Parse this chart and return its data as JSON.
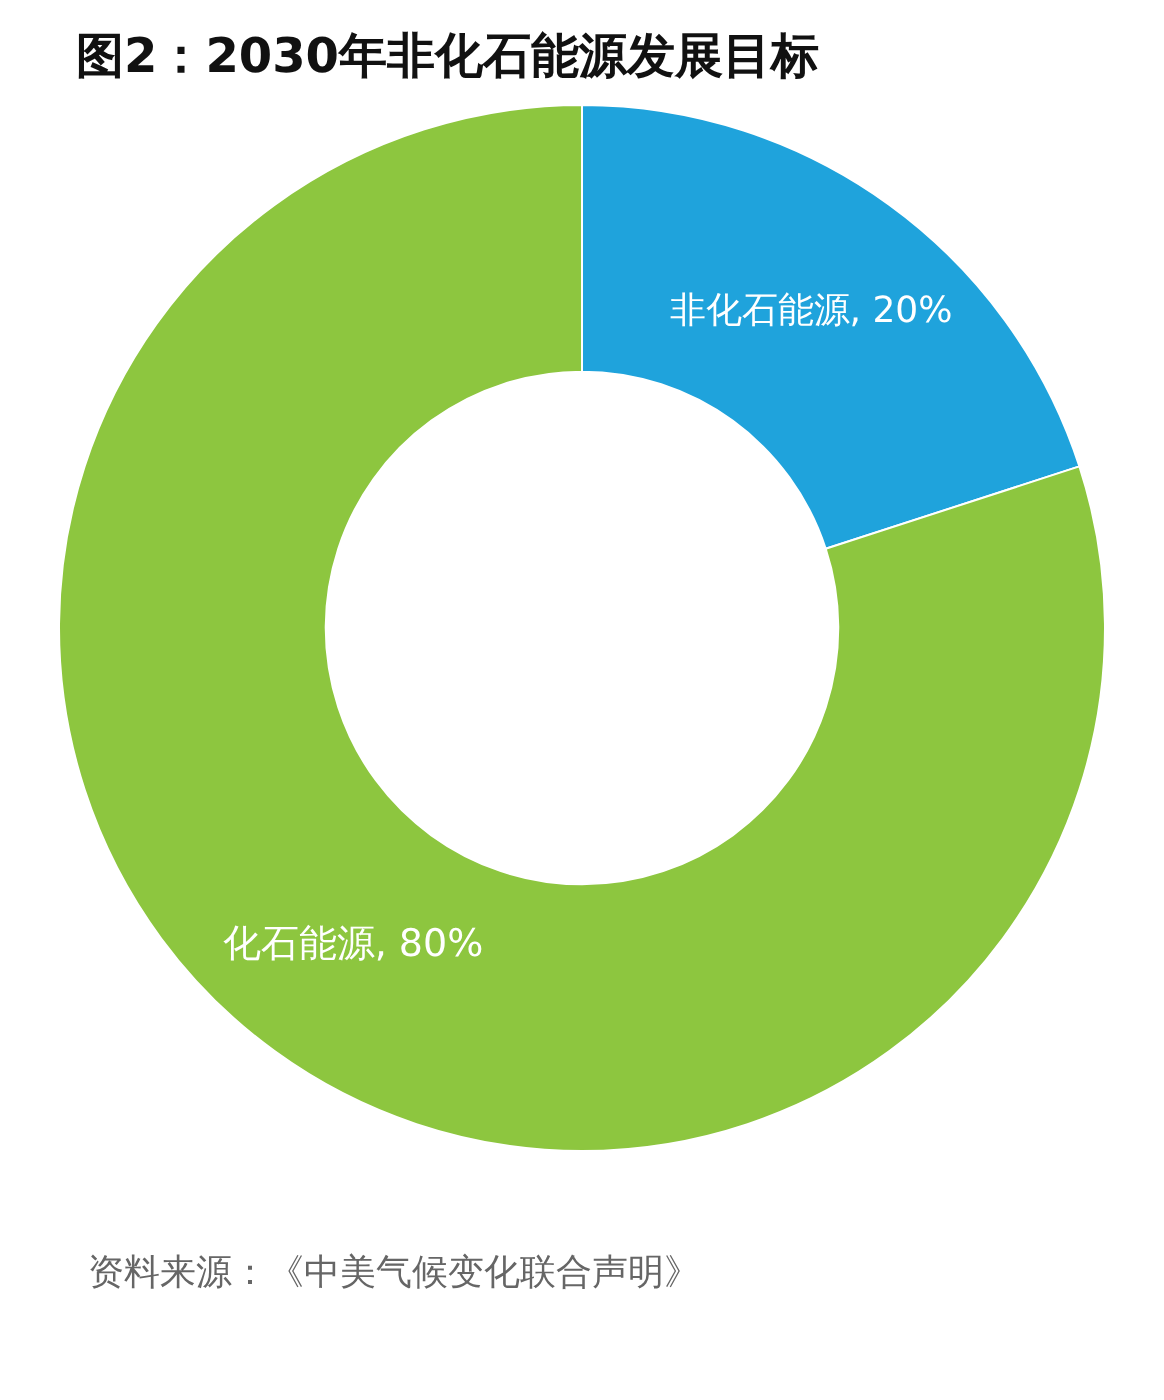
{
  "chart_data": {
    "type": "donut",
    "title": "图2：2030年非化石能源发展目标",
    "categories": [
      "非化石能源",
      "化石能源"
    ],
    "values": [
      20,
      80
    ],
    "colors": [
      "#1fa3dc",
      "#8dc63f"
    ],
    "value_labels": [
      "20%",
      "80%"
    ],
    "legend": false,
    "annotations": [
      "资料来源：《中美气候变化联合声明》"
    ]
  }
}
